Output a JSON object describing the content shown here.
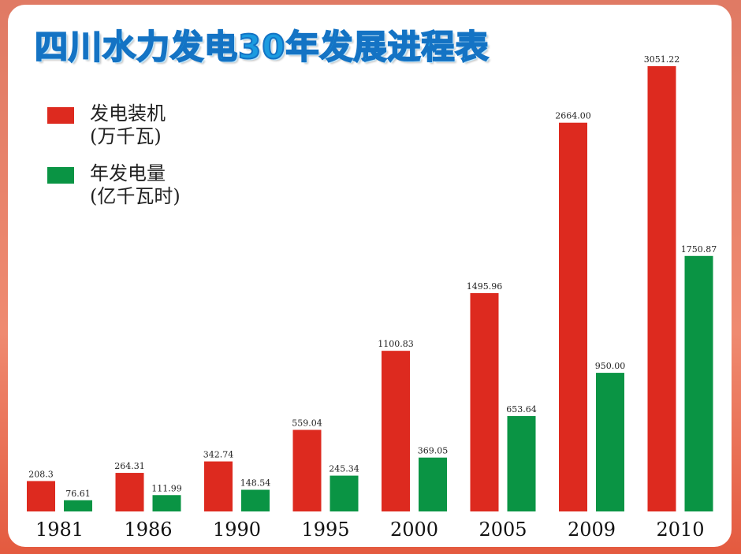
{
  "chart_data": {
    "type": "bar",
    "title": "四川水力发电30年发展进程表",
    "categories": [
      "1981",
      "1986",
      "1990",
      "1995",
      "2000",
      "2005",
      "2009",
      "2010"
    ],
    "series": [
      {
        "name": "发电装机",
        "unit": "(万千瓦)",
        "color": "#dd2a1f",
        "values": [
          208.3,
          264.31,
          342.74,
          559.04,
          1100.83,
          1495.96,
          2664.0,
          3051.22
        ],
        "labels": [
          "208.3",
          "264.31",
          "342.74",
          "559.04",
          "1100.83",
          "1495.96",
          "2664.00",
          "3051.22"
        ]
      },
      {
        "name": "年发电量",
        "unit": "(亿千瓦时)",
        "color": "#0a9444",
        "values": [
          76.61,
          111.99,
          148.54,
          245.34,
          369.05,
          653.64,
          950.0,
          1750.87
        ],
        "labels": [
          "76.61",
          "111.99",
          "148.54",
          "245.34",
          "369.05",
          "653.64",
          "950.00",
          "1750.87"
        ]
      }
    ],
    "xlabel": "",
    "ylabel": "",
    "grid": false,
    "legend": "top-left"
  }
}
